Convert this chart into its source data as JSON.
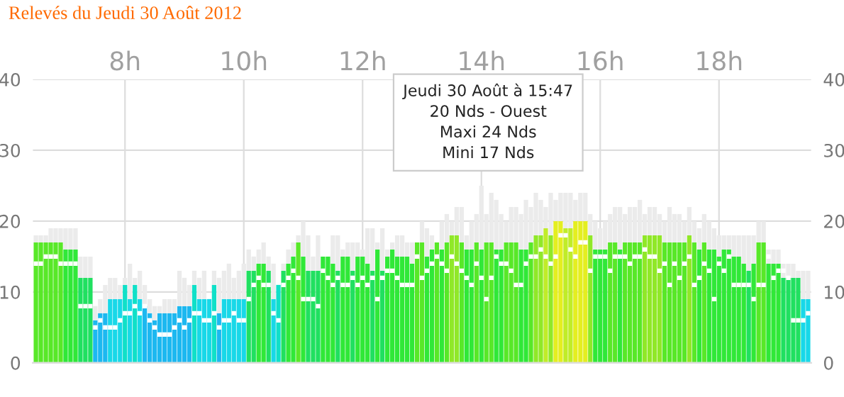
{
  "chart_data": {
    "type": "bar",
    "title": "Relevés du Jeudi 30 Août 2012",
    "x": [
      6.5,
      6.583,
      6.667,
      6.75,
      6.833,
      6.917,
      7,
      7.083,
      7.167,
      7.25,
      7.333,
      7.417,
      7.5,
      7.583,
      7.667,
      7.75,
      7.833,
      7.917,
      8,
      8.083,
      8.167,
      8.25,
      8.333,
      8.417,
      8.5,
      8.583,
      8.667,
      8.75,
      8.833,
      8.917,
      9,
      9.083,
      9.167,
      9.25,
      9.333,
      9.417,
      9.5,
      9.583,
      9.667,
      9.75,
      9.833,
      9.917,
      10,
      10.083,
      10.167,
      10.25,
      10.333,
      10.417,
      10.5,
      10.583,
      10.667,
      10.75,
      10.833,
      10.917,
      11,
      11.083,
      11.167,
      11.25,
      11.333,
      11.417,
      11.5,
      11.583,
      11.667,
      11.75,
      11.833,
      11.917,
      12,
      12.083,
      12.167,
      12.25,
      12.333,
      12.417,
      12.5,
      12.583,
      12.667,
      12.75,
      12.833,
      12.917,
      13,
      13.083,
      13.167,
      13.25,
      13.333,
      13.417,
      13.5,
      13.583,
      13.667,
      13.75,
      13.833,
      13.917,
      14,
      14.083,
      14.167,
      14.25,
      14.333,
      14.417,
      14.5,
      14.583,
      14.667,
      14.75,
      14.833,
      14.917,
      15,
      15.083,
      15.167,
      15.25,
      15.333,
      15.417,
      15.5,
      15.583,
      15.667,
      15.75,
      15.833,
      15.917,
      16,
      16.083,
      16.167,
      16.25,
      16.333,
      16.417,
      16.5,
      16.583,
      16.667,
      16.75,
      16.833,
      16.917,
      17,
      17.083,
      17.167,
      17.25,
      17.333,
      17.417,
      17.5,
      17.583,
      17.667,
      17.75,
      17.833,
      17.917,
      18,
      18.083,
      18.167,
      18.25,
      18.333,
      18.417,
      18.5,
      18.583,
      18.667,
      18.75,
      18.833,
      18.917,
      19,
      19.083,
      19.167,
      19.25,
      19.333,
      19.417,
      19.5
    ],
    "series": [
      {
        "values": [
          17,
          17,
          17,
          17,
          17,
          17,
          16,
          16,
          16,
          12,
          12,
          12,
          6,
          7,
          7,
          9,
          9,
          9,
          11,
          9,
          11,
          9,
          8,
          7,
          6,
          7,
          7,
          7,
          7,
          8,
          8,
          8,
          11,
          9,
          9,
          9,
          11,
          7,
          9,
          9,
          9,
          9,
          9,
          13,
          13,
          14,
          14,
          13,
          9,
          11,
          13,
          14,
          15,
          17,
          15,
          13,
          13,
          13,
          15,
          15,
          14,
          13,
          15,
          15,
          13,
          15,
          15,
          14,
          13,
          16,
          13,
          15,
          16,
          15,
          15,
          15,
          14,
          17,
          17,
          15,
          16,
          17,
          16,
          17,
          18,
          18,
          17,
          16,
          16,
          17,
          16,
          17,
          17,
          16,
          16,
          17,
          17,
          17,
          16,
          16,
          17,
          18,
          18,
          19,
          18,
          20,
          20,
          19,
          19,
          20,
          20,
          20,
          18,
          16,
          16,
          16,
          17,
          17,
          16,
          17,
          17,
          17,
          17,
          18,
          18,
          18,
          18,
          17,
          17,
          17,
          17,
          17,
          18,
          17,
          16,
          17,
          16,
          16,
          15,
          16,
          16,
          15,
          15,
          14,
          13,
          14,
          17,
          17,
          14,
          14,
          14,
          12,
          12,
          12,
          12,
          9,
          9
        ],
        "colors": [
          "#58e828",
          "#58e828",
          "#58e828",
          "#58e828",
          "#58e828",
          "#58e828",
          "#30e838",
          "#30e838",
          "#30e838",
          "#20e060",
          "#20e060",
          "#20e060",
          "#1cb8f0",
          "#1cb8f0",
          "#1cb8f0",
          "#18d8e8",
          "#18d8e8",
          "#18d8e8",
          "#10e0c8",
          "#18d8e8",
          "#10e0c8",
          "#18d8e8",
          "#1cb8f0",
          "#1cb8f0",
          "#1cb8f0",
          "#1cb8f0",
          "#1cb8f0",
          "#1cb8f0",
          "#1cb8f0",
          "#1cb8f0",
          "#1cb8f0",
          "#1cb8f0",
          "#10e0c8",
          "#18d8e8",
          "#18d8e8",
          "#18d8e8",
          "#10e0c8",
          "#1cb8f0",
          "#18d8e8",
          "#18d8e8",
          "#18d8e8",
          "#18d8e8",
          "#18d8e8",
          "#20e060",
          "#20e060",
          "#30e838",
          "#30e838",
          "#20e060",
          "#18d8e8",
          "#10e0c8",
          "#20e060",
          "#30e838",
          "#30e838",
          "#58e828",
          "#30e838",
          "#20e060",
          "#20e060",
          "#20e060",
          "#30e838",
          "#30e838",
          "#30e838",
          "#20e060",
          "#30e838",
          "#30e838",
          "#20e060",
          "#30e838",
          "#30e838",
          "#30e838",
          "#20e060",
          "#30e838",
          "#20e060",
          "#30e838",
          "#30e838",
          "#30e838",
          "#30e838",
          "#30e838",
          "#30e838",
          "#58e828",
          "#58e828",
          "#30e838",
          "#30e838",
          "#58e828",
          "#30e838",
          "#58e828",
          "#90e828",
          "#90e828",
          "#58e828",
          "#30e838",
          "#30e838",
          "#58e828",
          "#30e838",
          "#58e828",
          "#58e828",
          "#30e838",
          "#30e838",
          "#58e828",
          "#58e828",
          "#58e828",
          "#30e838",
          "#30e838",
          "#58e828",
          "#90e828",
          "#90e828",
          "#c0ec28",
          "#90e828",
          "#e4ee20",
          "#e4ee20",
          "#c0ec28",
          "#c0ec28",
          "#e4ee20",
          "#e4ee20",
          "#e4ee20",
          "#90e828",
          "#30e838",
          "#30e838",
          "#30e838",
          "#58e828",
          "#58e828",
          "#30e838",
          "#58e828",
          "#58e828",
          "#58e828",
          "#58e828",
          "#90e828",
          "#90e828",
          "#90e828",
          "#90e828",
          "#58e828",
          "#58e828",
          "#58e828",
          "#58e828",
          "#58e828",
          "#90e828",
          "#58e828",
          "#30e838",
          "#58e828",
          "#30e838",
          "#30e838",
          "#30e838",
          "#30e838",
          "#30e838",
          "#30e838",
          "#30e838",
          "#30e838",
          "#20e060",
          "#30e838",
          "#58e828",
          "#58e828",
          "#30e838",
          "#30e838",
          "#30e838",
          "#20e060",
          "#20e060",
          "#20e060",
          "#20e060",
          "#18d8e8",
          "#18d8e8"
        ]
      },
      {
        "color": "#ebebeb",
        "values": [
          1,
          1,
          1,
          2,
          2,
          2,
          3,
          3,
          3,
          3,
          3,
          3,
          2,
          2,
          4,
          3,
          3,
          2,
          1,
          5,
          1,
          4,
          3,
          2,
          2,
          1,
          2,
          2,
          2,
          5,
          4,
          3,
          2,
          3,
          4,
          0,
          2,
          5,
          4,
          5,
          3,
          4,
          5,
          3,
          2,
          2,
          3,
          2,
          5,
          0,
          1,
          2,
          2,
          1,
          5,
          5,
          2,
          5,
          0,
          0,
          4,
          5,
          1,
          2,
          4,
          2,
          1,
          5,
          6,
          1,
          6,
          1,
          1,
          3,
          3,
          2,
          3,
          0,
          3,
          4,
          2,
          0,
          4,
          4,
          2,
          4,
          5,
          2,
          4,
          4,
          9,
          4,
          7,
          7,
          5,
          3,
          5,
          5,
          5,
          7,
          5,
          6,
          5,
          3,
          6,
          3,
          4,
          5,
          5,
          3,
          4,
          4,
          3,
          4,
          3,
          4,
          4,
          5,
          6,
          4,
          5,
          5,
          6,
          3,
          4,
          4,
          3,
          3,
          5,
          4,
          4,
          3,
          4,
          3,
          3,
          4,
          4,
          3,
          3,
          2,
          2,
          3,
          3,
          4,
          5,
          4,
          3,
          3,
          2,
          2,
          2,
          2,
          2,
          2,
          1,
          4,
          4
        ]
      },
      {
        "type": "scatter",
        "color": "#ffffff",
        "values": [
          14,
          14,
          15,
          15,
          15,
          14,
          14,
          14,
          14,
          8,
          8,
          8,
          5,
          6,
          5,
          5,
          5,
          6,
          7,
          7,
          8,
          7,
          8,
          6,
          5,
          4,
          4,
          4,
          5,
          6,
          5,
          6,
          7,
          7,
          6,
          6,
          7,
          5,
          6,
          6,
          7,
          6,
          6,
          9,
          11,
          12,
          11,
          11,
          7,
          6,
          11,
          12,
          13,
          12,
          9,
          9,
          9,
          8,
          13,
          12,
          11,
          12,
          11,
          11,
          12,
          11,
          12,
          11,
          12,
          9,
          12,
          13,
          13,
          12,
          11,
          11,
          11,
          15,
          12,
          13,
          14,
          15,
          14,
          13,
          15,
          14,
          13,
          12,
          11,
          14,
          12,
          9,
          12,
          15,
          14,
          14,
          13,
          11,
          11,
          14,
          15,
          15,
          16,
          15,
          14,
          15,
          18,
          18,
          16,
          15,
          17,
          17,
          13,
          15,
          15,
          15,
          13,
          15,
          15,
          15,
          14,
          15,
          15,
          16,
          15,
          15,
          13,
          14,
          11,
          14,
          12,
          14,
          15,
          11,
          12,
          14,
          13,
          9,
          14,
          13,
          15,
          11,
          11,
          11,
          11,
          9,
          11,
          11,
          15,
          12,
          13,
          13,
          12,
          6,
          6,
          6,
          7
        ]
      }
    ],
    "xlim": [
      6.45,
      19.55
    ],
    "xticks": [
      {
        "value": 8,
        "label": "8h"
      },
      {
        "value": 10,
        "label": "10h"
      },
      {
        "value": 12,
        "label": "12h"
      },
      {
        "value": 14,
        "label": "14h"
      },
      {
        "value": 16,
        "label": "16h"
      },
      {
        "value": 18,
        "label": "18h"
      }
    ],
    "ylim": [
      0,
      40
    ],
    "yticks": [
      0,
      10,
      20,
      30,
      40
    ],
    "y2lim": [
      0,
      40
    ],
    "y2ticks": [
      0,
      10,
      20,
      30,
      40
    ],
    "grid": true,
    "stacked": true,
    "annotations": [
      "Jeudi 30 Août à 15:47\n20 Nds - Ouest\nMaxi 24 Nds\nMini 17 Nds"
    ]
  }
}
